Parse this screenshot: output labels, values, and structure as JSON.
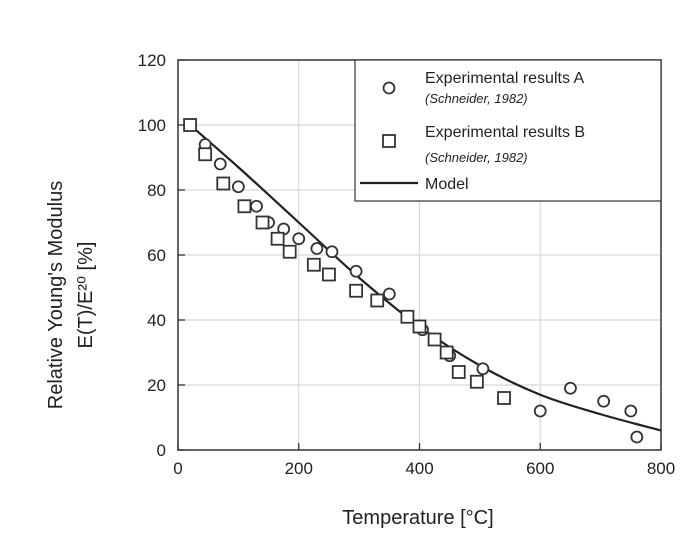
{
  "chart_data": {
    "type": "scatter",
    "xlabel": "Temperature [°C]",
    "ylabel_line1": "Relative Young's Modulus",
    "ylabel_line2": "E(T)/E²⁰ [%]",
    "xlim": [
      0,
      800
    ],
    "ylim": [
      0,
      120
    ],
    "xticks": [
      0,
      200,
      400,
      600,
      800
    ],
    "yticks": [
      0,
      20,
      40,
      60,
      80,
      100,
      120
    ],
    "grid": true,
    "legend_position": "top-right",
    "series": [
      {
        "name": "Experimental results A",
        "source": "(Schneider, 1982)",
        "marker": "circle",
        "x": [
          20,
          45,
          70,
          100,
          130,
          150,
          175,
          200,
          230,
          255,
          295,
          350,
          405,
          450,
          505,
          600,
          650,
          705,
          750,
          760
        ],
        "y": [
          100,
          94,
          88,
          81,
          75,
          70,
          68,
          65,
          62,
          61,
          55,
          48,
          37,
          29,
          25,
          12,
          19,
          15,
          12,
          4
        ]
      },
      {
        "name": "Experimental results B",
        "source": "(Schneider, 1982)",
        "marker": "square",
        "x": [
          20,
          45,
          75,
          110,
          140,
          165,
          185,
          225,
          250,
          295,
          330,
          380,
          400,
          425,
          445,
          465,
          495,
          540
        ],
        "y": [
          100,
          91,
          82,
          75,
          70,
          65,
          61,
          57,
          54,
          49,
          46,
          41,
          38,
          34,
          30,
          24,
          21,
          16
        ]
      },
      {
        "name": "Model",
        "marker": "line",
        "x": [
          20,
          100,
          200,
          300,
          400,
          500,
          600,
          700,
          800
        ],
        "y": [
          100,
          87,
          70,
          53,
          38,
          26,
          17,
          11,
          6
        ]
      }
    ]
  }
}
